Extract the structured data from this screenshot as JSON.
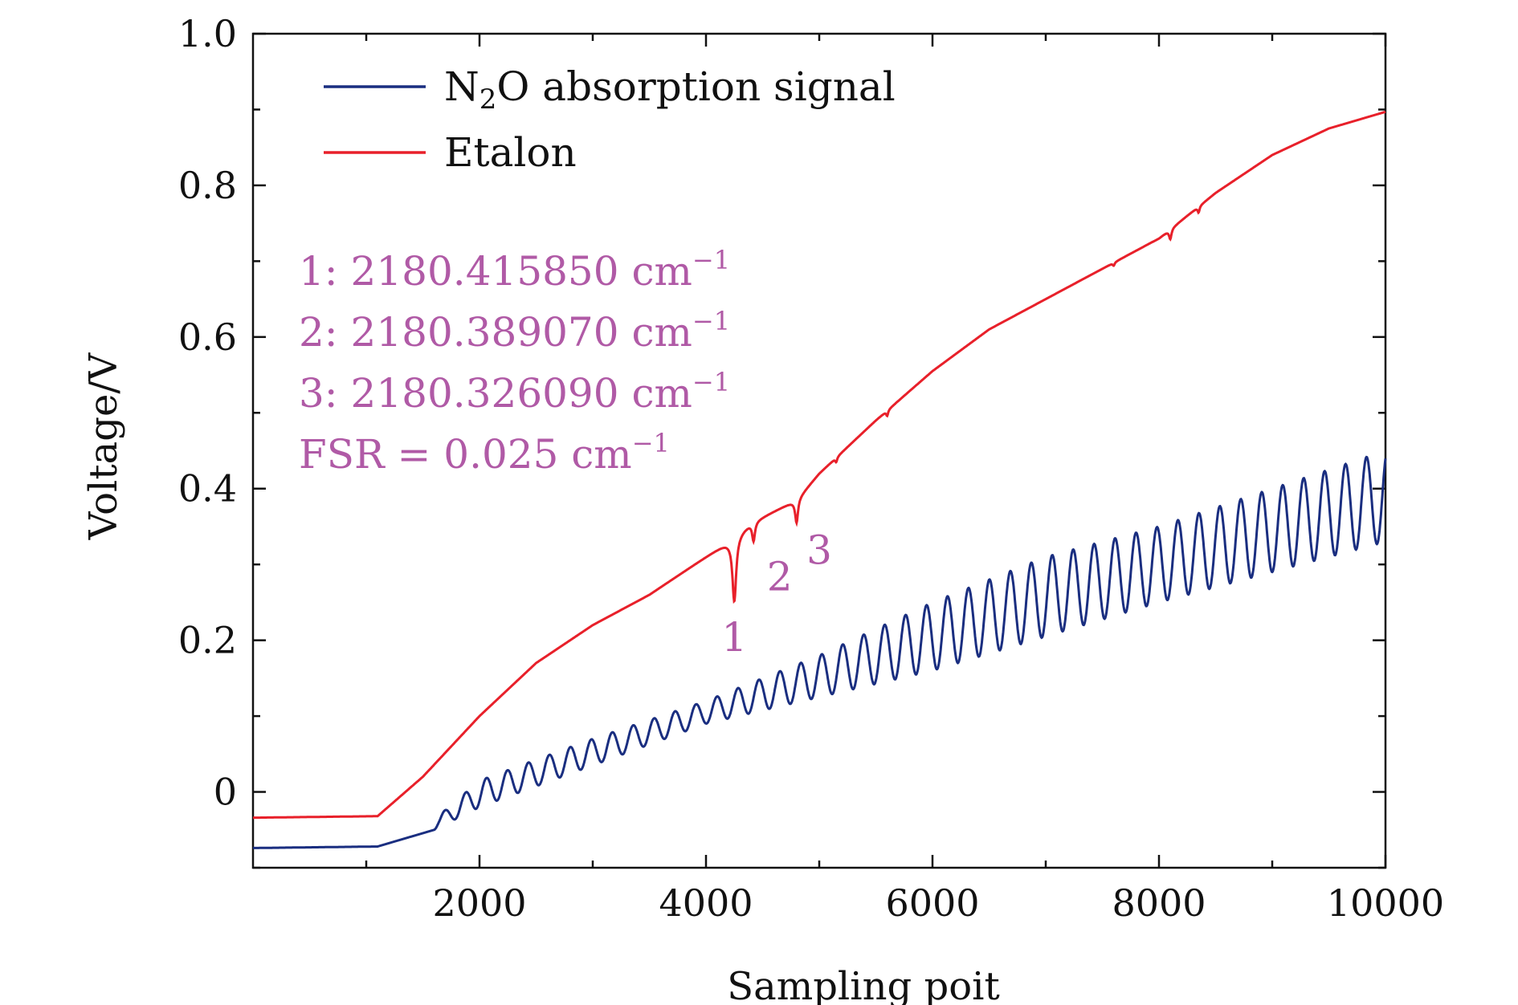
{
  "chart_data": {
    "type": "line",
    "xlabel": "Sampling poit",
    "ylabel": "Voltage/V",
    "xlim": [
      0,
      10000
    ],
    "ylim": [
      -0.1,
      1.0
    ],
    "x_ticks": [
      2000,
      4000,
      6000,
      8000,
      10000
    ],
    "x_tick_labels": [
      "2000",
      "4000",
      "6000",
      "8000",
      "10000"
    ],
    "y_ticks": [
      0,
      0.2,
      0.4,
      0.6,
      0.8,
      1.0
    ],
    "y_tick_labels": [
      "0",
      "0.2",
      "0.4",
      "0.6",
      "0.8",
      "1.0"
    ],
    "legend": {
      "position": "top-left",
      "entries": [
        {
          "name": "N2O absorption signal",
          "label_main": "N",
          "label_sub": "2",
          "label_rest": "O absorption signal",
          "color": "#1a2e80"
        },
        {
          "name": "Etalon",
          "label": "Etalon",
          "color": "#e8202a"
        }
      ]
    },
    "series": [
      {
        "name": "N2O absorption signal",
        "color": "#1a2e80",
        "description_points": {
          "flat_start": [
            [
              0,
              -0.074
            ],
            [
              1100,
              -0.072
            ]
          ],
          "ramp_baseline": [
            [
              1100,
              -0.072
            ],
            [
              1600,
              -0.05
            ],
            [
              2000,
              -0.02
            ],
            [
              4000,
              0.09
            ],
            [
              6000,
              0.16
            ],
            [
              8000,
              0.25
            ],
            [
              10000,
              0.33
            ]
          ],
          "ramp_peaks": [
            [
              1650,
              -0.03
            ],
            [
              2000,
              0.015
            ],
            [
              3000,
              0.07
            ],
            [
              4000,
              0.12
            ],
            [
              5000,
              0.18
            ],
            [
              6000,
              0.25
            ],
            [
              7000,
              0.31
            ],
            [
              8000,
              0.35
            ],
            [
              9000,
              0.4
            ],
            [
              10000,
              0.45
            ]
          ],
          "oscillation_period": 185,
          "oscillation_start": 1600
        }
      },
      {
        "name": "Etalon",
        "color": "#e8202a",
        "points": [
          [
            0,
            -0.034
          ],
          [
            1100,
            -0.032
          ],
          [
            1500,
            0.02
          ],
          [
            2000,
            0.1
          ],
          [
            2500,
            0.17
          ],
          [
            3000,
            0.22
          ],
          [
            3500,
            0.26
          ],
          [
            4000,
            0.31
          ],
          [
            4200,
            0.33
          ],
          [
            4400,
            0.355
          ],
          [
            4800,
            0.385
          ],
          [
            5000,
            0.42
          ],
          [
            5500,
            0.49
          ],
          [
            6000,
            0.555
          ],
          [
            6500,
            0.61
          ],
          [
            7000,
            0.65
          ],
          [
            7500,
            0.69
          ],
          [
            8000,
            0.73
          ],
          [
            8500,
            0.79
          ],
          [
            9000,
            0.84
          ],
          [
            9500,
            0.875
          ],
          [
            10000,
            0.897
          ]
        ],
        "dips": [
          {
            "x": 4250,
            "depth": 0.085,
            "width": 40
          },
          {
            "x": 4420,
            "depth": 0.025,
            "width": 30
          },
          {
            "x": 4800,
            "depth": 0.03,
            "width": 30
          },
          {
            "x": 5150,
            "depth": 0.006,
            "width": 20
          },
          {
            "x": 5600,
            "depth": 0.007,
            "width": 20
          },
          {
            "x": 7600,
            "depth": 0.004,
            "width": 20
          },
          {
            "x": 8100,
            "depth": 0.013,
            "width": 25
          },
          {
            "x": 8350,
            "depth": 0.008,
            "width": 20
          }
        ]
      }
    ],
    "annotations": {
      "lines": [
        {
          "prefix": "1: 2180.415850 cm",
          "sup": "−1"
        },
        {
          "prefix": "2: 2180.389070 cm",
          "sup": "−1"
        },
        {
          "prefix": "3: 2180.326090 cm",
          "sup": "−1"
        },
        {
          "prefix": "FSR = 0.025 cm",
          "sup": "−1"
        }
      ],
      "peak_labels": [
        {
          "text": "1",
          "x": 4250,
          "y": 0.205
        },
        {
          "text": "2",
          "x": 4650,
          "y": 0.285
        },
        {
          "text": "3",
          "x": 5000,
          "y": 0.32
        }
      ],
      "color": "#b05aa6"
    }
  }
}
